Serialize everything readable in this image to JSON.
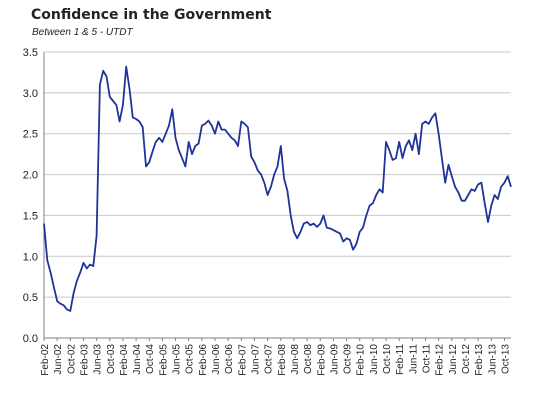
{
  "chart_data": {
    "type": "line",
    "title": "Confidence in the Government",
    "subtitle": "Between 1 & 5 - UTDT",
    "ylim": [
      0,
      3.5
    ],
    "yticks": [
      "0.0",
      "0.5",
      "1.0",
      "1.5",
      "2.0",
      "2.5",
      "3.0",
      "3.5"
    ],
    "grid": "horizontal",
    "x_tick_labels": [
      "Feb-02",
      "Jun-02",
      "Oct-02",
      "Feb-03",
      "Jun-03",
      "Oct-03",
      "Feb-04",
      "Jun-04",
      "Oct-04",
      "Feb-05",
      "Jun-05",
      "Oct-05",
      "Feb-06",
      "Jun-06",
      "Oct-06",
      "Feb-07",
      "Jun-07",
      "Oct-07",
      "Feb-08",
      "Jun-08",
      "Oct-08",
      "Feb-09",
      "Jun-09",
      "Oct-09",
      "Feb-10",
      "Jun-10",
      "Oct-10",
      "Feb-11",
      "Jun-11",
      "Oct-11",
      "Feb-12",
      "Jun-12",
      "Oct-12",
      "Feb-13",
      "Jun-13",
      "Oct-13"
    ],
    "x_start": "Feb-02",
    "x_end": "Oct-13",
    "color": "#1f3399",
    "values": [
      1.4,
      0.95,
      0.8,
      0.62,
      0.45,
      0.42,
      0.4,
      0.35,
      0.33,
      0.55,
      0.7,
      0.8,
      0.92,
      0.85,
      0.9,
      0.88,
      1.25,
      3.1,
      3.27,
      3.2,
      2.95,
      2.9,
      2.85,
      2.65,
      2.85,
      3.32,
      3.05,
      2.7,
      2.68,
      2.65,
      2.58,
      2.1,
      2.15,
      2.28,
      2.4,
      2.45,
      2.4,
      2.5,
      2.6,
      2.8,
      2.45,
      2.3,
      2.2,
      2.1,
      2.4,
      2.25,
      2.35,
      2.38,
      2.6,
      2.62,
      2.66,
      2.6,
      2.5,
      2.65,
      2.55,
      2.55,
      2.5,
      2.45,
      2.42,
      2.35,
      2.65,
      2.62,
      2.58,
      2.22,
      2.15,
      2.05,
      2.0,
      1.9,
      1.75,
      1.85,
      2.0,
      2.1,
      2.35,
      1.95,
      1.8,
      1.5,
      1.3,
      1.22,
      1.3,
      1.4,
      1.42,
      1.38,
      1.4,
      1.36,
      1.4,
      1.5,
      1.35,
      1.34,
      1.32,
      1.3,
      1.28,
      1.18,
      1.22,
      1.2,
      1.08,
      1.15,
      1.3,
      1.35,
      1.5,
      1.62,
      1.65,
      1.75,
      1.82,
      1.78,
      2.4,
      2.3,
      2.18,
      2.2,
      2.4,
      2.2,
      2.35,
      2.42,
      2.3,
      2.5,
      2.25,
      2.62,
      2.65,
      2.62,
      2.7,
      2.75,
      2.5,
      2.2,
      1.9,
      2.12,
      1.98,
      1.85,
      1.78,
      1.68,
      1.68,
      1.75,
      1.82,
      1.8,
      1.88,
      1.9,
      1.65,
      1.42,
      1.62,
      1.75,
      1.7,
      1.85,
      1.9,
      1.98,
      1.85
    ]
  }
}
